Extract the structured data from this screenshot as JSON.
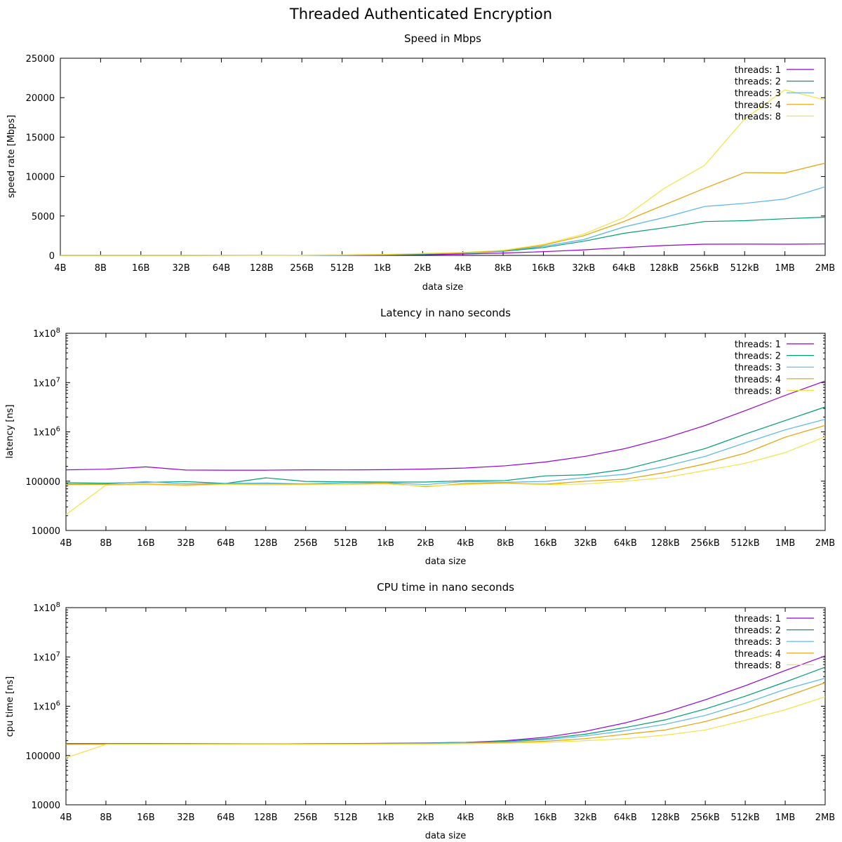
{
  "figure": {
    "title": "Threaded Authenticated Encryption"
  },
  "chart_data": [
    {
      "type": "line",
      "title": "Speed in Mbps",
      "xlabel": "data size",
      "ylabel": "speed rate [Mbps]",
      "yscale": "linear",
      "ylim": [
        0,
        25000
      ],
      "yticks": [
        0,
        5000,
        10000,
        15000,
        20000,
        25000
      ],
      "ytick_labels": [
        "0",
        "5000",
        "10000",
        "15000",
        "20000",
        "25000"
      ],
      "grid": false,
      "legend_position": "top-right",
      "categories": [
        "4B",
        "8B",
        "16B",
        "32B",
        "64B",
        "128B",
        "256B",
        "512B",
        "1kB",
        "2kB",
        "4kB",
        "8kB",
        "16kB",
        "32kB",
        "64kB",
        "128kB",
        "256kB",
        "512kB",
        "1MB",
        "2MB"
      ],
      "series": [
        {
          "name": "threads: 1",
          "color": "#9400d3",
          "values": [
            0,
            0,
            1,
            1,
            3,
            6,
            12,
            24,
            48,
            90,
            170,
            300,
            470,
            700,
            1000,
            1250,
            1420,
            1430,
            1420,
            1450
          ]
        },
        {
          "name": "threads: 2",
          "color": "#009e73",
          "values": [
            0,
            1,
            2,
            3,
            6,
            11,
            20,
            40,
            80,
            150,
            300,
            520,
            1000,
            1800,
            2800,
            3500,
            4300,
            4400,
            4650,
            4850
          ]
        },
        {
          "name": "threads: 3",
          "color": "#56b4e9",
          "values": [
            0,
            1,
            2,
            4,
            8,
            16,
            30,
            60,
            100,
            180,
            330,
            560,
            1150,
            2000,
            3600,
            4800,
            6200,
            6600,
            7150,
            8700
          ]
        },
        {
          "name": "threads: 4",
          "color": "#e69f00",
          "values": [
            0,
            1,
            2,
            4,
            9,
            18,
            36,
            70,
            115,
            220,
            350,
            600,
            1300,
            2500,
            4300,
            6400,
            8500,
            10500,
            10450,
            11700
          ]
        },
        {
          "name": "threads: 8",
          "color": "#f0e442",
          "values": [
            0,
            1,
            2,
            4,
            9,
            20,
            40,
            80,
            120,
            260,
            380,
            650,
            1400,
            2700,
            4800,
            8500,
            11400,
            17300,
            21000,
            19700
          ]
        }
      ]
    },
    {
      "type": "line",
      "title": "Latency in nano seconds",
      "xlabel": "data size",
      "ylabel": "latency [ns]",
      "yscale": "log",
      "ylim": [
        10000,
        100000000
      ],
      "yticks": [
        10000,
        100000,
        1000000,
        10000000,
        100000000
      ],
      "ytick_labels": [
        "10000",
        "100000",
        "1x10^6",
        "1x10^7",
        "1x10^8"
      ],
      "grid": false,
      "legend_position": "top-right",
      "categories": [
        "4B",
        "8B",
        "16B",
        "32B",
        "64B",
        "128B",
        "256B",
        "512B",
        "1kB",
        "2kB",
        "4kB",
        "8kB",
        "16kB",
        "32kB",
        "64kB",
        "128kB",
        "256kB",
        "512kB",
        "1MB",
        "2MB"
      ],
      "series": [
        {
          "name": "threads: 1",
          "color": "#9400d3",
          "values": [
            170000,
            175000,
            195000,
            168000,
            167000,
            167000,
            170000,
            169000,
            171000,
            176000,
            185000,
            205000,
            245000,
            320000,
            460000,
            750000,
            1350000,
            2700000,
            5500000,
            10800000
          ]
        },
        {
          "name": "threads: 2",
          "color": "#009e73",
          "values": [
            93000,
            91000,
            95000,
            98000,
            90000,
            117000,
            99000,
            97000,
            96000,
            96000,
            102000,
            103000,
            128000,
            135000,
            175000,
            280000,
            460000,
            900000,
            1700000,
            3200000
          ]
        },
        {
          "name": "threads: 3",
          "color": "#56b4e9",
          "values": [
            87000,
            88000,
            98000,
            88000,
            90000,
            92000,
            88000,
            93000,
            94000,
            85000,
            99000,
            95000,
            99000,
            118000,
            138000,
            200000,
            320000,
            600000,
            1100000,
            1800000
          ]
        },
        {
          "name": "threads: 4",
          "color": "#e69f00",
          "values": [
            85000,
            86000,
            88000,
            83000,
            87000,
            88000,
            87000,
            87000,
            92000,
            77000,
            90000,
            92000,
            87000,
            100000,
            110000,
            150000,
            225000,
            370000,
            780000,
            1350000
          ]
        },
        {
          "name": "threads: 8",
          "color": "#f0e442",
          "values": [
            21000,
            83000,
            85000,
            81000,
            86000,
            84000,
            85000,
            86000,
            88000,
            79000,
            86000,
            90000,
            85000,
            88000,
            100000,
            118000,
            165000,
            230000,
            380000,
            800000
          ]
        }
      ]
    },
    {
      "type": "line",
      "title": "CPU time in nano seconds",
      "xlabel": "data size",
      "ylabel": "cpu time [ns]",
      "yscale": "log",
      "ylim": [
        10000,
        100000000
      ],
      "yticks": [
        10000,
        100000,
        1000000,
        10000000,
        100000000
      ],
      "ytick_labels": [
        "10000",
        "100000",
        "1x10^6",
        "1x10^7",
        "1x10^8"
      ],
      "grid": false,
      "legend_position": "top-right",
      "categories": [
        "4B",
        "8B",
        "16B",
        "32B",
        "64B",
        "128B",
        "256B",
        "512B",
        "1kB",
        "2kB",
        "4kB",
        "8kB",
        "16kB",
        "32kB",
        "64kB",
        "128kB",
        "256kB",
        "512kB",
        "1MB",
        "2MB"
      ],
      "series": [
        {
          "name": "threads: 1",
          "color": "#9400d3",
          "values": [
            175000,
            175000,
            175000,
            174000,
            173000,
            172000,
            173000,
            175000,
            177000,
            180000,
            185000,
            200000,
            235000,
            310000,
            460000,
            750000,
            1350000,
            2600000,
            5300000,
            10500000
          ]
        },
        {
          "name": "threads: 2",
          "color": "#009e73",
          "values": [
            172000,
            172000,
            173000,
            173000,
            172000,
            172000,
            173000,
            174000,
            176000,
            178000,
            184000,
            195000,
            220000,
            270000,
            370000,
            530000,
            880000,
            1600000,
            3100000,
            6200000
          ]
        },
        {
          "name": "threads: 3",
          "color": "#56b4e9",
          "values": [
            170000,
            171000,
            171000,
            171000,
            171000,
            171000,
            172000,
            173000,
            174000,
            176000,
            182000,
            190000,
            210000,
            250000,
            320000,
            430000,
            650000,
            1150000,
            2200000,
            3700000
          ]
        },
        {
          "name": "threads: 4",
          "color": "#e69f00",
          "values": [
            168000,
            169000,
            169000,
            169000,
            169000,
            169000,
            170000,
            171000,
            172000,
            173000,
            178000,
            185000,
            195000,
            220000,
            270000,
            330000,
            490000,
            820000,
            1550000,
            3000000
          ]
        },
        {
          "name": "threads: 8",
          "color": "#f0e442",
          "values": [
            90000,
            168000,
            168000,
            168000,
            168000,
            168000,
            169000,
            169000,
            170000,
            171000,
            174000,
            178000,
            185000,
            200000,
            220000,
            260000,
            330000,
            520000,
            850000,
            1550000
          ]
        }
      ]
    }
  ]
}
